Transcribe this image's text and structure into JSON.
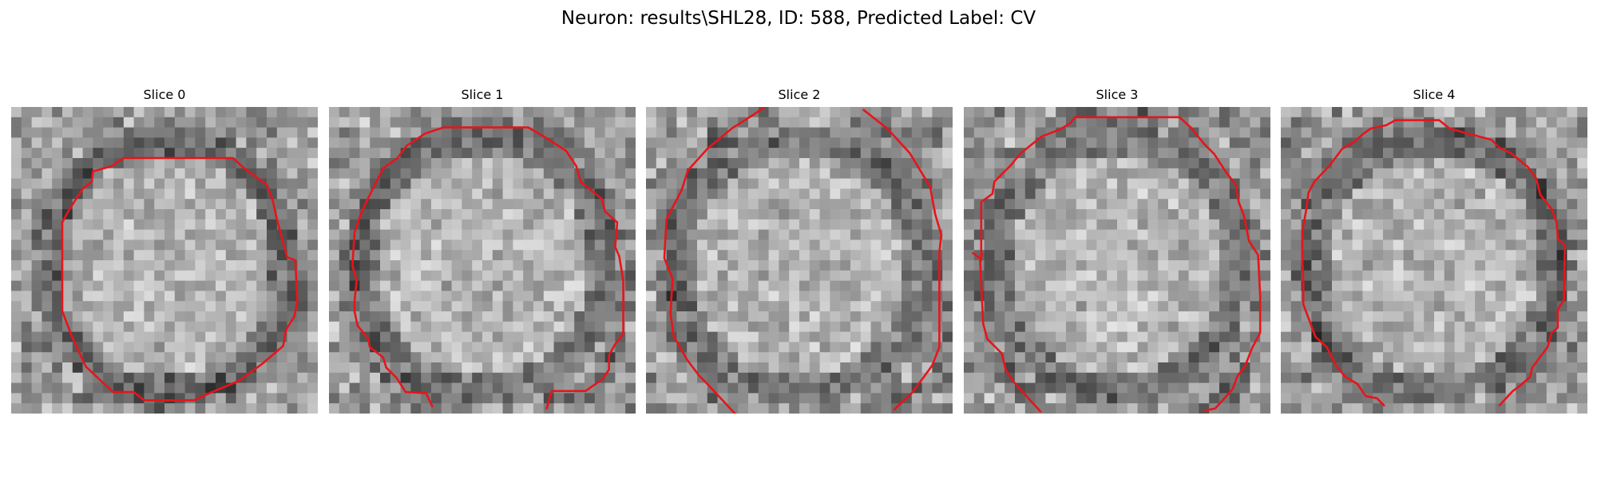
{
  "figure": {
    "title": "Neuron: results\\SHL28, ID: 588, Predicted Label: CV"
  },
  "colors": {
    "contour": "#e8141a",
    "background": "#ffffff"
  },
  "slices": [
    {
      "title": "Slice 0",
      "seed": 11,
      "contrast": 1.0
    },
    {
      "title": "Slice 1",
      "seed": 23,
      "contrast": 1.0
    },
    {
      "title": "Slice 2",
      "seed": 37,
      "contrast": 1.0
    },
    {
      "title": "Slice 3",
      "seed": 53,
      "contrast": 1.0
    },
    {
      "title": "Slice 4",
      "seed": 71,
      "contrast": 1.0
    }
  ]
}
